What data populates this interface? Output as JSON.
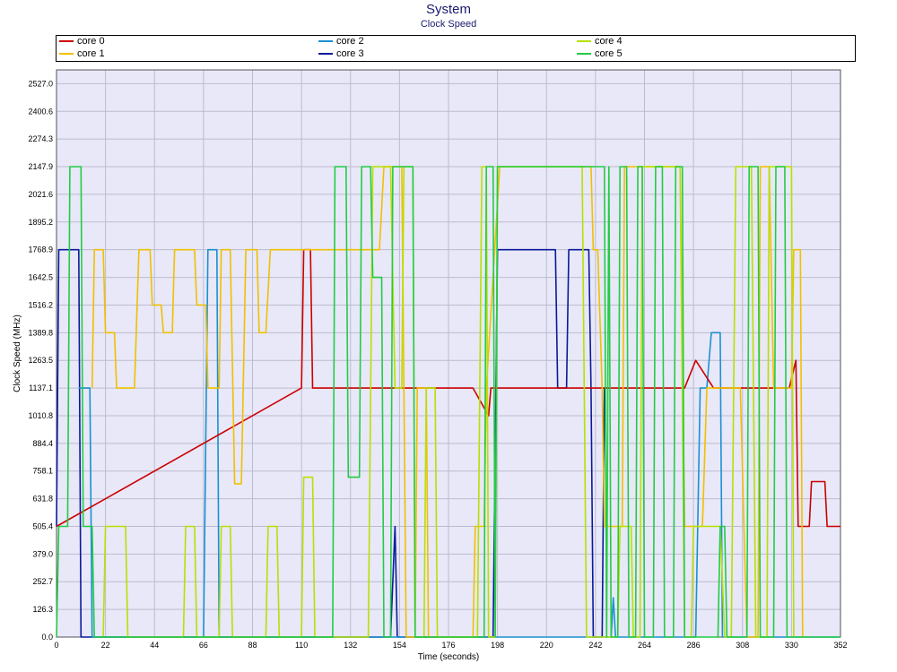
{
  "chart_data": {
    "type": "line",
    "title": "System",
    "subtitle": "Clock Speed",
    "xlabel": "Time (seconds)",
    "ylabel": "Clock Speed (MHz)",
    "xlim": [
      0,
      352
    ],
    "ylim": [
      0,
      2590
    ],
    "x_ticks": [
      0,
      22,
      44,
      66,
      88,
      110,
      132,
      154,
      176,
      198,
      220,
      242,
      264,
      286,
      308,
      330,
      352
    ],
    "y_ticks": [
      0.0,
      126.3,
      252.7,
      379.0,
      505.4,
      631.8,
      758.1,
      884.4,
      1010.8,
      1137.1,
      1263.5,
      1389.8,
      1516.2,
      1642.5,
      1768.9,
      1895.2,
      2021.6,
      2147.9,
      2274.3,
      2400.6,
      2527.0
    ],
    "grid": true,
    "plot_background": "#e8e8f8",
    "legend_position": "top",
    "series": [
      {
        "name": "core 0",
        "color": "#cc0000",
        "points": [
          [
            0,
            505.4
          ],
          [
            110,
            1137.1
          ],
          [
            111,
            1768.9
          ],
          [
            114,
            1768.9
          ],
          [
            115,
            1137.1
          ],
          [
            154,
            1137.1
          ],
          [
            187,
            1137.1
          ],
          [
            194,
            1010.8
          ],
          [
            195,
            1137.1
          ],
          [
            198,
            1137.1
          ],
          [
            242,
            1137.1
          ],
          [
            247,
            1137.1
          ],
          [
            282,
            1137.1
          ],
          [
            287,
            1263.5
          ],
          [
            295,
            1137.1
          ],
          [
            329,
            1137.1
          ],
          [
            332,
            1263.5
          ],
          [
            333,
            505.4
          ],
          [
            338,
            505.4
          ],
          [
            339,
            710
          ],
          [
            345,
            710
          ],
          [
            346,
            505.4
          ],
          [
            352,
            505.4
          ]
        ]
      },
      {
        "name": "core 1",
        "color": "#f0c000",
        "points": [
          [
            16,
            1137.1
          ],
          [
            17,
            1768.9
          ],
          [
            21,
            1768.9
          ],
          [
            22,
            1389.8
          ],
          [
            26,
            1389.8
          ],
          [
            27,
            1137.1
          ],
          [
            35,
            1137.1
          ],
          [
            37,
            1768.9
          ],
          [
            42,
            1768.9
          ],
          [
            43,
            1516.2
          ],
          [
            47,
            1516.2
          ],
          [
            48,
            1389.8
          ],
          [
            52,
            1389.8
          ],
          [
            53,
            1768.9
          ],
          [
            62,
            1768.9
          ],
          [
            63,
            1516.2
          ],
          [
            67,
            1516.2
          ],
          [
            68,
            1137.1
          ],
          [
            73,
            1137.1
          ],
          [
            74,
            1768.9
          ],
          [
            78,
            1768.9
          ],
          [
            80,
            700
          ],
          [
            83,
            700
          ],
          [
            85,
            1768.9
          ],
          [
            90,
            1768.9
          ],
          [
            91,
            1389.8
          ],
          [
            94,
            1389.8
          ],
          [
            96,
            1768.9
          ],
          [
            145,
            1768.9
          ],
          [
            147,
            2147.9
          ],
          [
            155,
            2147.9
          ],
          [
            156,
            1137.1
          ],
          [
            157,
            0
          ],
          [
            161,
            0
          ],
          [
            162,
            1137.1
          ],
          [
            166,
            1137.1
          ],
          [
            167,
            0
          ],
          [
            177,
            0
          ],
          [
            187,
            0
          ],
          [
            188,
            505.4
          ],
          [
            192,
            505.4
          ],
          [
            193,
            1137.1
          ],
          [
            199,
            2147.9
          ],
          [
            240,
            2147.9
          ],
          [
            241,
            1768.9
          ],
          [
            243,
            1768.9
          ],
          [
            245,
            1137.1
          ],
          [
            246,
            505.4
          ],
          [
            254,
            505.4
          ],
          [
            255,
            2147.9
          ],
          [
            280,
            2147.9
          ],
          [
            282,
            505.4
          ],
          [
            290,
            505.4
          ],
          [
            292,
            1137.1
          ],
          [
            307,
            1137.1
          ],
          [
            310,
            0
          ],
          [
            315,
            0
          ],
          [
            316,
            2147.9
          ],
          [
            320,
            2147.9
          ],
          [
            322,
            1137.1
          ],
          [
            330,
            1137.1
          ],
          [
            331,
            1768.9
          ],
          [
            334,
            1768.9
          ],
          [
            335,
            0
          ]
        ]
      },
      {
        "name": "core 2",
        "color": "#1a90d0",
        "points": [
          [
            10,
            1137.1
          ],
          [
            15,
            1137.1
          ],
          [
            16,
            0
          ],
          [
            66,
            0
          ],
          [
            68,
            1768.9
          ],
          [
            72,
            1768.9
          ],
          [
            73,
            0
          ],
          [
            90,
            0
          ],
          [
            190,
            0
          ],
          [
            249,
            0
          ],
          [
            250,
            180
          ],
          [
            251,
            0
          ],
          [
            285,
            0
          ],
          [
            287,
            0
          ],
          [
            289,
            1137.1
          ],
          [
            292,
            1137.1
          ],
          [
            294,
            1389.8
          ],
          [
            298,
            1389.8
          ],
          [
            299,
            0
          ],
          [
            352,
            0
          ]
        ]
      },
      {
        "name": "core 3",
        "color": "#0a1a9a",
        "points": [
          [
            0,
            505.4
          ],
          [
            1,
            1768.9
          ],
          [
            10,
            1768.9
          ],
          [
            11,
            0
          ],
          [
            150,
            0
          ],
          [
            152,
            505.4
          ],
          [
            153,
            0
          ],
          [
            156,
            0
          ],
          [
            196,
            0
          ],
          [
            198,
            1768.9
          ],
          [
            224,
            1768.9
          ],
          [
            225,
            1137.1
          ],
          [
            229,
            1137.1
          ],
          [
            230,
            1768.9
          ],
          [
            239,
            1768.9
          ],
          [
            240,
            1137.1
          ],
          [
            241,
            0
          ],
          [
            245,
            0
          ],
          [
            246,
            1137.1
          ],
          [
            248,
            1137.1
          ]
        ]
      },
      {
        "name": "core 4",
        "color": "#b8e000",
        "points": [
          [
            21,
            0
          ],
          [
            22,
            505.4
          ],
          [
            31,
            505.4
          ],
          [
            32,
            0
          ],
          [
            57,
            0
          ],
          [
            58,
            505.4
          ],
          [
            62,
            505.4
          ],
          [
            63,
            0
          ],
          [
            73,
            0
          ],
          [
            74,
            505.4
          ],
          [
            78,
            505.4
          ],
          [
            79,
            0
          ],
          [
            94,
            0
          ],
          [
            95,
            505.4
          ],
          [
            99,
            505.4
          ],
          [
            100,
            0
          ],
          [
            110,
            0
          ],
          [
            111,
            730
          ],
          [
            115,
            730
          ],
          [
            116,
            0
          ],
          [
            140,
            0
          ],
          [
            142,
            2147.9
          ],
          [
            150,
            2147.9
          ],
          [
            152,
            1137.1
          ],
          [
            155,
            1137.1
          ],
          [
            156,
            2147.9
          ],
          [
            160,
            2147.9
          ],
          [
            161,
            0
          ],
          [
            165,
            0
          ],
          [
            166,
            1137.1
          ],
          [
            170,
            1137.1
          ],
          [
            171,
            0
          ],
          [
            189,
            0
          ],
          [
            191,
            2147.9
          ],
          [
            193,
            2147.9
          ],
          [
            194,
            0
          ],
          [
            197,
            0
          ],
          [
            198,
            2147.9
          ],
          [
            236,
            2147.9
          ],
          [
            238,
            0
          ],
          [
            252,
            0
          ],
          [
            253,
            505.4
          ],
          [
            258,
            505.4
          ],
          [
            259,
            0
          ],
          [
            262,
            0
          ],
          [
            263,
            2147.9
          ],
          [
            280,
            2147.9
          ],
          [
            282,
            0
          ],
          [
            285,
            0
          ],
          [
            286,
            505.4
          ],
          [
            298,
            505.4
          ],
          [
            300,
            0
          ],
          [
            303,
            0
          ],
          [
            305,
            2147.9
          ],
          [
            312,
            2147.9
          ],
          [
            314,
            0
          ],
          [
            319,
            0
          ],
          [
            320,
            2147.9
          ],
          [
            330,
            2147.9
          ],
          [
            331,
            0
          ]
        ]
      },
      {
        "name": "core 5",
        "color": "#22cc44",
        "points": [
          [
            0,
            0
          ],
          [
            1,
            505.4
          ],
          [
            5,
            505.4
          ],
          [
            6,
            2147.9
          ],
          [
            11,
            2147.9
          ],
          [
            12,
            505.4
          ],
          [
            16,
            505.4
          ],
          [
            17,
            0
          ],
          [
            124,
            0
          ],
          [
            125,
            2147.9
          ],
          [
            130,
            2147.9
          ],
          [
            131,
            730
          ],
          [
            136,
            730
          ],
          [
            137,
            2147.9
          ],
          [
            141,
            2147.9
          ],
          [
            142,
            1642.5
          ],
          [
            146,
            1642.5
          ],
          [
            147,
            0
          ],
          [
            150,
            0
          ],
          [
            151,
            2147.9
          ],
          [
            160,
            2147.9
          ],
          [
            161,
            0
          ],
          [
            192,
            0
          ],
          [
            193,
            2147.9
          ],
          [
            196,
            2147.9
          ],
          [
            197,
            0
          ],
          [
            198,
            2147.9
          ],
          [
            226,
            2147.9
          ],
          [
            246,
            2147.9
          ],
          [
            247,
            0
          ],
          [
            248,
            2147.9
          ],
          [
            249,
            0
          ],
          [
            252,
            0
          ],
          [
            253,
            2147.9
          ],
          [
            256,
            2147.9
          ],
          [
            257,
            0
          ],
          [
            260,
            0
          ],
          [
            261,
            2147.9
          ],
          [
            263,
            2147.9
          ],
          [
            264,
            0
          ],
          [
            268,
            0
          ],
          [
            269,
            2147.9
          ],
          [
            272,
            2147.9
          ],
          [
            273,
            0
          ],
          [
            277,
            0
          ],
          [
            278,
            2147.9
          ],
          [
            281,
            2147.9
          ],
          [
            282,
            0
          ],
          [
            297,
            0
          ],
          [
            298,
            505.4
          ],
          [
            300,
            505.4
          ],
          [
            301,
            0
          ],
          [
            310,
            0
          ],
          [
            311,
            2147.9
          ],
          [
            315,
            2147.9
          ],
          [
            316,
            0
          ],
          [
            322,
            0
          ],
          [
            323,
            2147.9
          ],
          [
            327,
            2147.9
          ],
          [
            328,
            0
          ],
          [
            352,
            0
          ]
        ]
      }
    ]
  }
}
